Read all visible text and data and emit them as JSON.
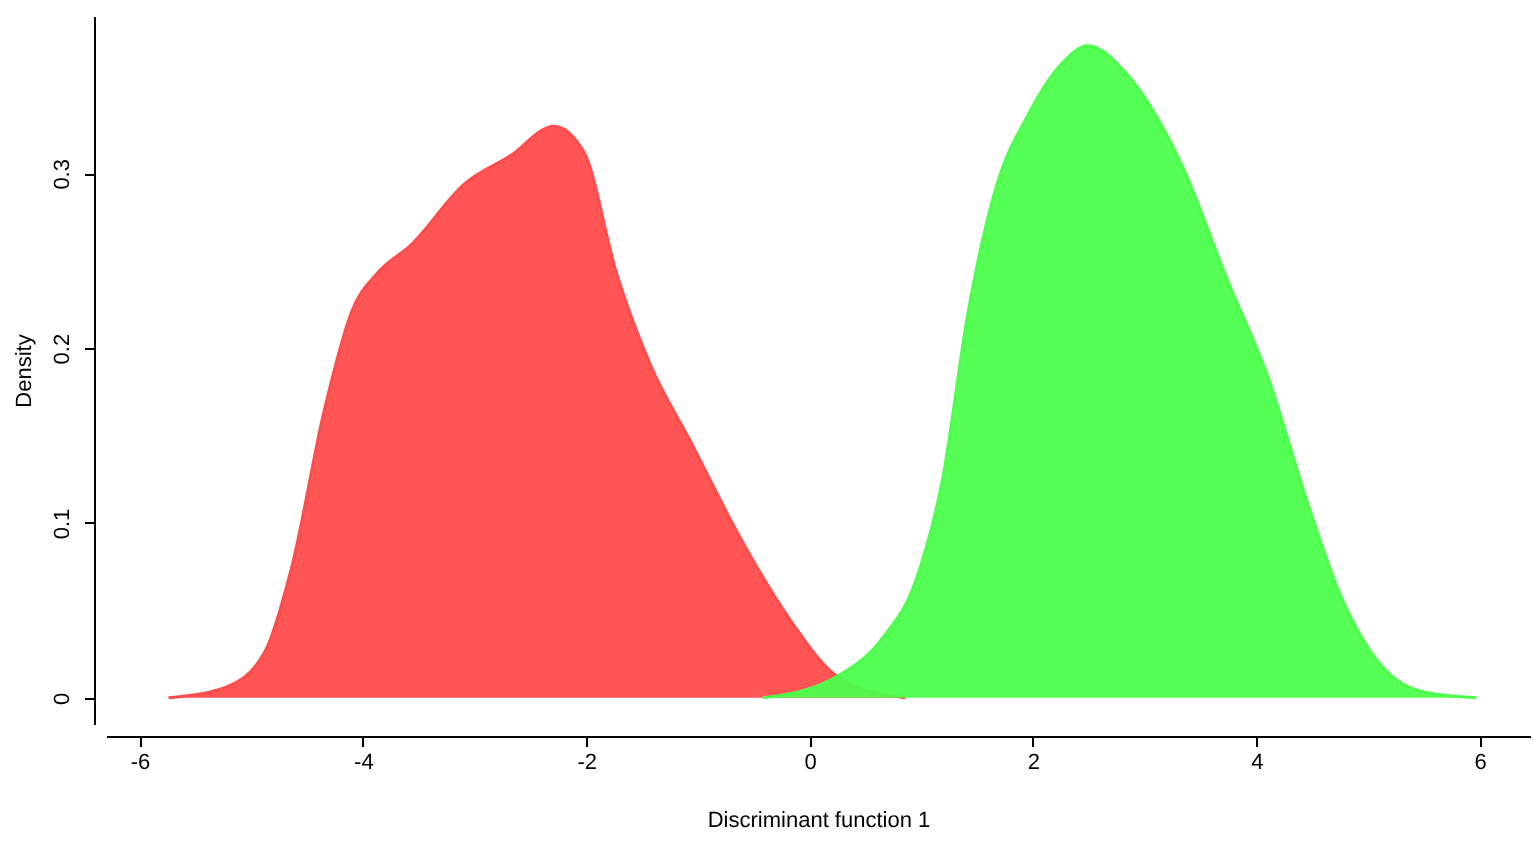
{
  "chart_data": {
    "type": "area",
    "xlabel": "Discriminant function 1",
    "ylabel": "Density",
    "xlim": [
      -6.3,
      6.45
    ],
    "ylim": [
      -0.015,
      0.39
    ],
    "xticks": [
      -6,
      -4,
      -2,
      0,
      2,
      4,
      6
    ],
    "yticks": [
      0,
      0.1,
      0.2,
      0.3
    ],
    "grid": false,
    "series": [
      {
        "color": "#ff4c4c",
        "x": [
          -5.74,
          -5.23,
          -4.88,
          -4.64,
          -4.34,
          -4.1,
          -3.87,
          -3.57,
          -3.09,
          -2.68,
          -2.29,
          -2.02,
          -1.73,
          -1.43,
          -1.07,
          -0.6,
          -0.18,
          0.21,
          0.59,
          0.86
        ],
        "values": [
          0,
          0.006,
          0.026,
          0.074,
          0.166,
          0.221,
          0.243,
          0.259,
          0.294,
          0.31,
          0.327,
          0.312,
          0.243,
          0.191,
          0.147,
          0.089,
          0.045,
          0.014,
          0.003,
          0
        ]
      },
      {
        "color": "#4cff4c",
        "x": [
          -0.42,
          -0.06,
          0.24,
          0.65,
          0.95,
          1.19,
          1.42,
          1.66,
          1.96,
          2.26,
          2.49,
          2.85,
          3.33,
          3.74,
          4.1,
          4.46,
          4.75,
          5.11,
          5.52,
          5.97
        ],
        "values": [
          0,
          0.004,
          0.012,
          0.034,
          0.067,
          0.125,
          0.221,
          0.29,
          0.334,
          0.363,
          0.373,
          0.356,
          0.305,
          0.239,
          0.184,
          0.111,
          0.059,
          0.019,
          0.003,
          0
        ]
      }
    ]
  }
}
